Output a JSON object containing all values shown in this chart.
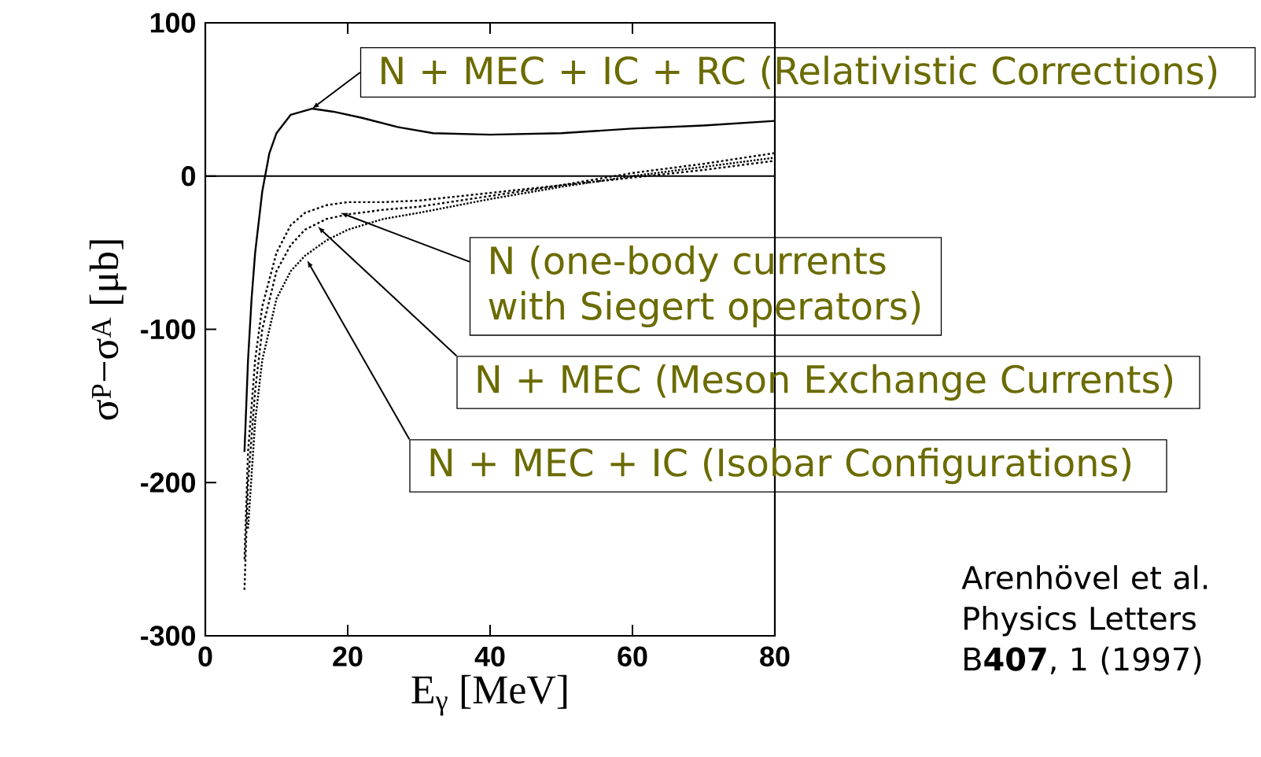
{
  "chart_data": {
    "type": "line",
    "xlabel": "E$_{γ}$ [MeV]",
    "ylabel": "σ$^{P}$−σ$^{A}$ [μb]",
    "xlim": [
      0,
      80
    ],
    "ylim": [
      -300,
      100
    ],
    "xticks": [
      0,
      20,
      40,
      60,
      80
    ],
    "yticks": [
      -300,
      -200,
      -100,
      0,
      100
    ],
    "grid": false,
    "marker": "none",
    "series": [
      {
        "color": "#000000",
        "line_style": "solid",
        "x": [
          5.5,
          6,
          6.5,
          7,
          8,
          9,
          10,
          12,
          15,
          18,
          22,
          27,
          32,
          40,
          50,
          60,
          70,
          80
        ],
        "values": [
          -180,
          -120,
          -80,
          -50,
          -10,
          15,
          28,
          40,
          44,
          42,
          38,
          32,
          28,
          27,
          28,
          31,
          33,
          36
        ]
      },
      {
        "color": "#000000",
        "line_style": "dashed",
        "x": [
          5.5,
          6,
          7,
          8,
          10,
          12,
          14,
          17,
          20,
          25,
          30,
          40,
          50,
          60,
          70,
          80
        ],
        "values": [
          -250,
          -180,
          -120,
          -85,
          -50,
          -32,
          -24,
          -19,
          -17,
          -17,
          -16,
          -11,
          -6,
          -1,
          4,
          10
        ]
      },
      {
        "color": "#000000",
        "line_style": "dashed",
        "x": [
          5.5,
          6,
          7,
          8,
          10,
          12,
          14,
          17,
          20,
          25,
          30,
          40,
          50,
          60,
          70,
          80
        ],
        "values": [
          -270,
          -200,
          -140,
          -100,
          -62,
          -45,
          -35,
          -28,
          -25,
          -22,
          -20,
          -13,
          -6,
          2,
          8,
          15
        ]
      },
      {
        "color": "#000000",
        "line_style": "dotted",
        "x": [
          6,
          7,
          8,
          10,
          12,
          14,
          17,
          20,
          25,
          30,
          40,
          50,
          60,
          70,
          80
        ],
        "values": [
          -230,
          -160,
          -120,
          -80,
          -62,
          -52,
          -42,
          -35,
          -28,
          -24,
          -15,
          -7,
          0,
          6,
          12
        ]
      }
    ],
    "ref_lines": [
      {
        "axis": "y",
        "value": 0,
        "color": "#000000",
        "line_style": "solid"
      }
    ],
    "annotations": [
      {
        "text": "N + MEC + IC + RC (Relativistic Corrections)",
        "x": 15,
        "y": 44
      },
      {
        "text": "N (one-body currents with Siegert operators)",
        "x": 19,
        "y": -24
      },
      {
        "text": "N + MEC (Meson Exchange Currents)",
        "x": 15.8,
        "y": -33
      },
      {
        "text": "N + MEC + IC (Isobar Configurations)",
        "x": 14.3,
        "y": -55
      },
      "Arenhövel et al. Physics Letters B**407**, 1 (1997)"
    ]
  }
}
